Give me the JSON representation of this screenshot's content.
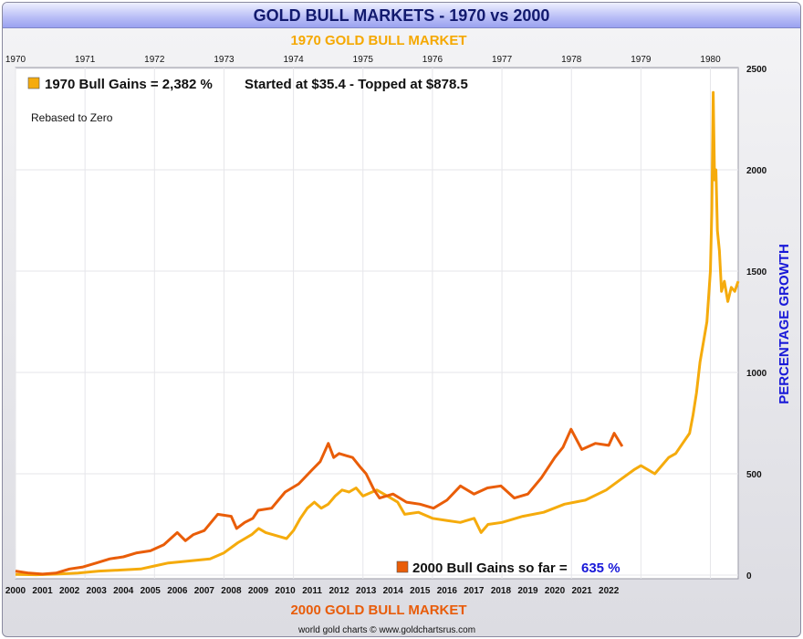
{
  "title": "GOLD BULL MARKETS - 1970 vs 2000",
  "footer": "world gold charts © www.goldchartsrus.com",
  "colors": {
    "series1970": "#f5ab0c",
    "series2000": "#e95d08",
    "top_axis_title": "#f5a800",
    "bottom_axis_title": "#e85c0a",
    "right_axis_title": "#1818d8",
    "value_highlight": "#1818d8",
    "grid": "#e6e6ea"
  },
  "chart_data": {
    "type": "line",
    "title": "GOLD BULL MARKETS - 1970 vs 2000",
    "top_axis_title": "1970 GOLD BULL MARKET",
    "bottom_axis_title": "2000 GOLD BULL MARKET",
    "ylabel": "PERCENTAGE GROWTH",
    "ylim": [
      0,
      2500
    ],
    "y_ticks": [
      "0",
      "500",
      "1000",
      "1500",
      "2000",
      "2500"
    ],
    "top_axis_range": [
      1970,
      1980.4
    ],
    "top_ticks": [
      "1970",
      "1971",
      "1972",
      "1973",
      "1974",
      "1975",
      "1976",
      "1977",
      "1978",
      "1979",
      "1980"
    ],
    "bottom_axis_range": [
      2000,
      2026.8
    ],
    "bottom_ticks": [
      "2000",
      "2001",
      "2002",
      "2003",
      "2004",
      "2005",
      "2006",
      "2007",
      "2008",
      "2009",
      "2010",
      "2011",
      "2012",
      "2013",
      "2014",
      "2015",
      "2016",
      "2017",
      "2018",
      "2019",
      "2020",
      "2021",
      "2022"
    ],
    "annotations": {
      "note": "Rebased to Zero",
      "legend_1970": "1970 Bull Gains = 2,382 %",
      "started_topped": "Started at $35.4 - Topped at $878.5",
      "legend_2000_label": "2000 Bull Gains so far =",
      "legend_2000_value": "635 %"
    },
    "series": [
      {
        "name": "1970 Bull Gains",
        "axis": "top",
        "color": "#f5ab0c",
        "x": [
          1970.0,
          1970.3,
          1970.6,
          1970.9,
          1971.2,
          1971.5,
          1971.8,
          1972.0,
          1972.2,
          1972.5,
          1972.8,
          1973.0,
          1973.2,
          1973.4,
          1973.5,
          1973.6,
          1973.8,
          1973.9,
          1974.0,
          1974.1,
          1974.2,
          1974.3,
          1974.4,
          1974.5,
          1974.6,
          1974.7,
          1974.8,
          1974.9,
          1975.0,
          1975.2,
          1975.4,
          1975.5,
          1975.6,
          1975.8,
          1976.0,
          1976.2,
          1976.4,
          1976.6,
          1976.7,
          1976.8,
          1977.0,
          1977.3,
          1977.6,
          1977.9,
          1978.2,
          1978.5,
          1978.7,
          1978.9,
          1979.0,
          1979.2,
          1979.4,
          1979.5,
          1979.6,
          1979.7,
          1979.75,
          1979.8,
          1979.85,
          1979.9,
          1979.95,
          1980.0,
          1980.02,
          1980.04,
          1980.06,
          1980.08,
          1980.1,
          1980.13,
          1980.16,
          1980.2,
          1980.25,
          1980.3,
          1980.35,
          1980.4
        ],
        "values": [
          3,
          2,
          5,
          10,
          20,
          25,
          30,
          45,
          60,
          70,
          80,
          110,
          160,
          200,
          230,
          210,
          190,
          180,
          220,
          280,
          330,
          360,
          330,
          350,
          390,
          420,
          410,
          430,
          390,
          420,
          380,
          360,
          300,
          310,
          280,
          270,
          260,
          280,
          210,
          250,
          260,
          290,
          310,
          350,
          370,
          420,
          470,
          520,
          540,
          500,
          580,
          600,
          650,
          700,
          790,
          900,
          1050,
          1150,
          1250,
          1500,
          1800,
          2382,
          1950,
          2000,
          1700,
          1600,
          1400,
          1450,
          1350,
          1420,
          1400,
          1450
        ]
      },
      {
        "name": "2000 Bull Gains",
        "axis": "bottom",
        "color": "#e95d08",
        "x": [
          2000.0,
          2000.5,
          2001.0,
          2001.5,
          2002.0,
          2002.5,
          2003.0,
          2003.5,
          2004.0,
          2004.5,
          2005.0,
          2005.5,
          2006.0,
          2006.3,
          2006.6,
          2007.0,
          2007.5,
          2008.0,
          2008.2,
          2008.5,
          2008.8,
          2009.0,
          2009.5,
          2010.0,
          2010.5,
          2011.0,
          2011.3,
          2011.6,
          2011.8,
          2012.0,
          2012.5,
          2012.8,
          2013.0,
          2013.3,
          2013.5,
          2014.0,
          2014.5,
          2015.0,
          2015.5,
          2016.0,
          2016.5,
          2017.0,
          2017.5,
          2018.0,
          2018.5,
          2019.0,
          2019.5,
          2020.0,
          2020.3,
          2020.6,
          2021.0,
          2021.5,
          2022.0,
          2022.2,
          2022.5
        ],
        "values": [
          20,
          10,
          5,
          10,
          30,
          40,
          60,
          80,
          90,
          110,
          120,
          150,
          210,
          170,
          200,
          220,
          300,
          290,
          230,
          260,
          280,
          320,
          330,
          410,
          450,
          520,
          560,
          650,
          580,
          600,
          580,
          530,
          500,
          420,
          380,
          400,
          360,
          350,
          330,
          370,
          440,
          400,
          430,
          440,
          380,
          400,
          480,
          580,
          630,
          720,
          620,
          650,
          640,
          700,
          635
        ]
      }
    ]
  }
}
